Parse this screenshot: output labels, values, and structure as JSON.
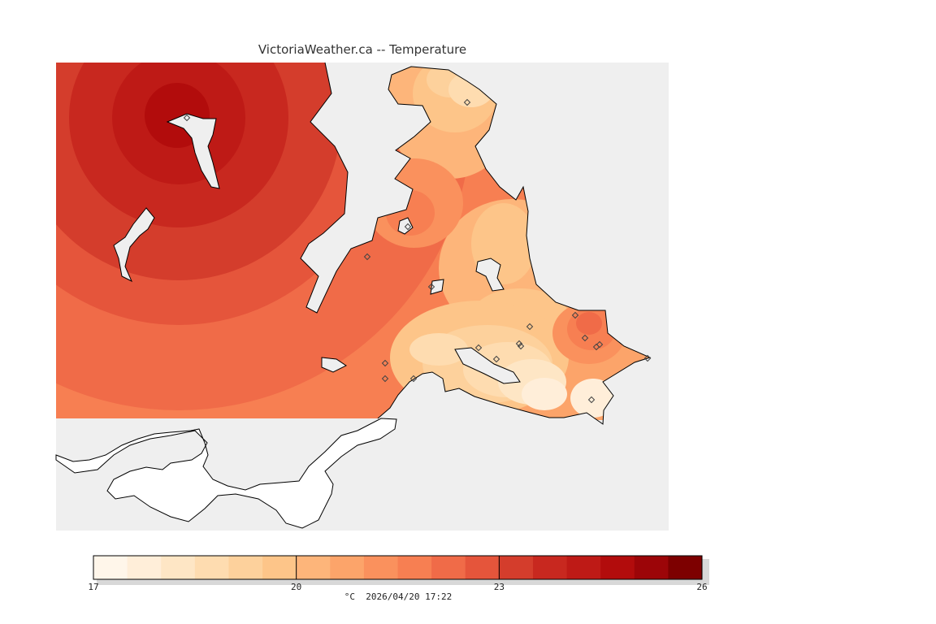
{
  "map": {
    "title": "VictoriaWeather.ca -- Temperature",
    "variable": "Temperature",
    "colors": {
      "background": "#efefef",
      "land_outside": "#ffffff",
      "coast": "#000000"
    }
  },
  "legend": {
    "min": 17,
    "max": 26,
    "ticks": [
      "17",
      "20",
      "23",
      "26"
    ],
    "caption": "°C  2026/04/20 17:22",
    "colors": [
      "#fff6ea",
      "#ffeed9",
      "#fee6c5",
      "#fedcb0",
      "#fdd19c",
      "#fdc589",
      "#fdb57a",
      "#fca46a",
      "#fa915d",
      "#f77f52",
      "#f06b48",
      "#e5553b",
      "#d43d2c",
      "#c8281f",
      "#be1a16",
      "#b20c0c",
      "#9c0508",
      "#7d0000"
    ]
  },
  "stations": [
    {
      "lon": 230,
      "lat": 145
    },
    {
      "lon": 575,
      "lat": 126
    },
    {
      "lon": 502,
      "lat": 279
    },
    {
      "lon": 452,
      "lat": 316
    },
    {
      "lon": 531,
      "lat": 353
    },
    {
      "lon": 474,
      "lat": 447
    },
    {
      "lon": 474,
      "lat": 466
    },
    {
      "lon": 509,
      "lat": 466
    },
    {
      "lon": 589,
      "lat": 428
    },
    {
      "lon": 611,
      "lat": 442
    },
    {
      "lon": 639,
      "lat": 423
    },
    {
      "lon": 641,
      "lat": 426
    },
    {
      "lon": 652,
      "lat": 402
    },
    {
      "lon": 708,
      "lat": 388
    },
    {
      "lon": 720,
      "lat": 416
    },
    {
      "lon": 734,
      "lat": 427
    },
    {
      "lon": 738,
      "lat": 424
    },
    {
      "lon": 728,
      "lat": 492
    },
    {
      "lon": 797,
      "lat": 441
    }
  ]
}
